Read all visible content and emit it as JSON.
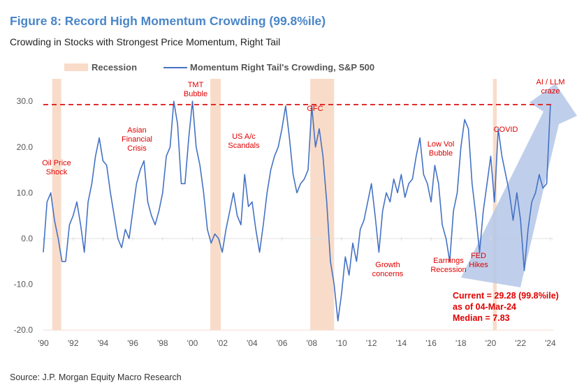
{
  "title": "Figure 8: Record High Momentum Crowding (99.8%ile)",
  "subtitle": "Crowding in Stocks with Strongest Price Momentum, Right Tail",
  "source": "Source: J.P. Morgan Equity Macro Research",
  "chart_data": {
    "type": "line",
    "xlabel": "",
    "ylabel": "",
    "ylim": [
      -20,
      30
    ],
    "xlim": [
      1990,
      2024.2
    ],
    "yticks": [
      "30.0",
      "20.0",
      "10.0",
      "0.0",
      "-10.0",
      "-20.0"
    ],
    "ytick_values": [
      30,
      20,
      10,
      0,
      -10,
      -20
    ],
    "xticks": [
      "'90",
      "'92",
      "'94",
      "'96",
      "'98",
      "'00",
      "'02",
      "'04",
      "'06",
      "'08",
      "'10",
      "'12",
      "'14",
      "'16",
      "'18",
      "'20",
      "'22",
      "'24"
    ],
    "legend": {
      "placement": "top",
      "recession": "Recession",
      "series": "Momentum Right Tail's Crowding, S&P 500"
    },
    "reference_line": {
      "value": 29.28,
      "style": "dashed",
      "color": "#e02020"
    },
    "recessions": [
      [
        1990.6,
        1991.2
      ],
      [
        2001.2,
        2001.9
      ],
      [
        2007.9,
        2009.5
      ],
      [
        2020.15,
        2020.4
      ]
    ],
    "colors": {
      "line": "#4472c4",
      "recession": "#f8dcc9",
      "annotation": "#e00000",
      "arrow": "#b4c7e7"
    },
    "series": [
      {
        "name": "Momentum Right Tail's Crowding, S&P 500",
        "start": 1990,
        "step": 0.25,
        "values": [
          -3,
          8,
          10,
          4,
          0,
          -5,
          -5,
          3,
          5,
          8,
          3,
          -3,
          8,
          12,
          18,
          22,
          17,
          16,
          10,
          5,
          0,
          -2,
          2,
          0,
          6,
          12,
          15,
          17,
          8,
          5,
          3,
          6,
          10,
          18,
          20,
          30,
          25,
          12,
          12,
          22,
          30,
          20,
          16,
          10,
          2,
          -1,
          1,
          0,
          -3,
          2,
          6,
          10,
          5,
          3,
          14,
          7,
          8,
          2,
          -3,
          3,
          10,
          15,
          18,
          20,
          24,
          29,
          22,
          14,
          10,
          12,
          13,
          15,
          29,
          20,
          24,
          18,
          8,
          -5,
          -10,
          -18,
          -12,
          -4,
          -8,
          -1,
          -5,
          2,
          4,
          8,
          12,
          5,
          -3,
          6,
          10,
          8,
          13,
          10,
          14,
          9,
          12,
          13,
          18,
          22,
          14,
          12,
          8,
          16,
          12,
          3,
          0,
          -5,
          6,
          10,
          20,
          26,
          24,
          12,
          5,
          -3,
          6,
          12,
          18,
          8,
          24,
          18,
          14,
          10,
          4,
          10,
          4,
          -7,
          2,
          8,
          10,
          14,
          11,
          12,
          29.28
        ]
      }
    ],
    "annotations": [
      "Oil Price Shock",
      "Asian Financial Crisis",
      "TMT Bubble",
      "US A/c Scandals",
      "GFC",
      "Growth concerns",
      "Low Vol Bubble",
      "Earnings Recession",
      "FED Hikes",
      "COVID",
      "AI / LLM craze"
    ],
    "callout": {
      "current": "Current = 29.28 (99.8%ile)",
      "asof": "as of 04-Mar-24",
      "median": "Median = 7.83"
    }
  }
}
